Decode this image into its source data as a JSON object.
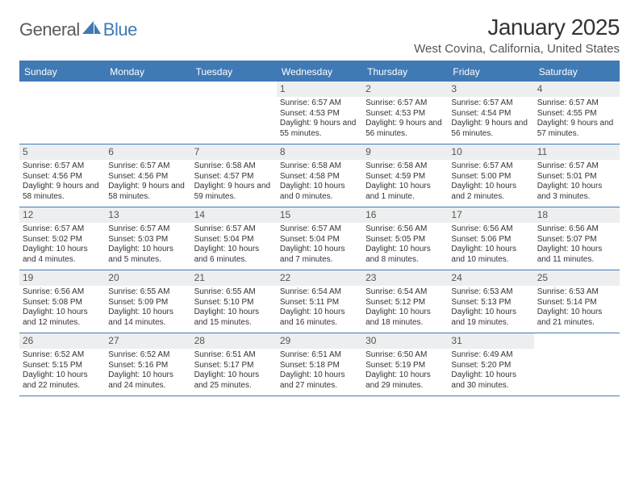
{
  "brand": {
    "part1": "General",
    "part2": "Blue"
  },
  "title": "January 2025",
  "location": "West Covina, California, United States",
  "day_headers": [
    "Sunday",
    "Monday",
    "Tuesday",
    "Wednesday",
    "Thursday",
    "Friday",
    "Saturday"
  ],
  "colors": {
    "accent": "#3f7ab5",
    "header_bg": "#3f7ab5",
    "header_text": "#ffffff",
    "daynum_bg": "#eceeef",
    "body_text": "#333333",
    "page_bg": "#ffffff"
  },
  "typography": {
    "title_fontsize": 28,
    "location_fontsize": 15,
    "dayheader_fontsize": 12,
    "daynum_fontsize": 12,
    "cell_fontsize": 10
  },
  "layout": {
    "cols": 7,
    "rows": 5,
    "first_weekday_index": 3
  },
  "days": [
    {
      "n": 1,
      "sunrise": "6:57 AM",
      "sunset": "4:53 PM",
      "daylight": "9 hours and 55 minutes."
    },
    {
      "n": 2,
      "sunrise": "6:57 AM",
      "sunset": "4:53 PM",
      "daylight": "9 hours and 56 minutes."
    },
    {
      "n": 3,
      "sunrise": "6:57 AM",
      "sunset": "4:54 PM",
      "daylight": "9 hours and 56 minutes."
    },
    {
      "n": 4,
      "sunrise": "6:57 AM",
      "sunset": "4:55 PM",
      "daylight": "9 hours and 57 minutes."
    },
    {
      "n": 5,
      "sunrise": "6:57 AM",
      "sunset": "4:56 PM",
      "daylight": "9 hours and 58 minutes."
    },
    {
      "n": 6,
      "sunrise": "6:57 AM",
      "sunset": "4:56 PM",
      "daylight": "9 hours and 58 minutes."
    },
    {
      "n": 7,
      "sunrise": "6:58 AM",
      "sunset": "4:57 PM",
      "daylight": "9 hours and 59 minutes."
    },
    {
      "n": 8,
      "sunrise": "6:58 AM",
      "sunset": "4:58 PM",
      "daylight": "10 hours and 0 minutes."
    },
    {
      "n": 9,
      "sunrise": "6:58 AM",
      "sunset": "4:59 PM",
      "daylight": "10 hours and 1 minute."
    },
    {
      "n": 10,
      "sunrise": "6:57 AM",
      "sunset": "5:00 PM",
      "daylight": "10 hours and 2 minutes."
    },
    {
      "n": 11,
      "sunrise": "6:57 AM",
      "sunset": "5:01 PM",
      "daylight": "10 hours and 3 minutes."
    },
    {
      "n": 12,
      "sunrise": "6:57 AM",
      "sunset": "5:02 PM",
      "daylight": "10 hours and 4 minutes."
    },
    {
      "n": 13,
      "sunrise": "6:57 AM",
      "sunset": "5:03 PM",
      "daylight": "10 hours and 5 minutes."
    },
    {
      "n": 14,
      "sunrise": "6:57 AM",
      "sunset": "5:04 PM",
      "daylight": "10 hours and 6 minutes."
    },
    {
      "n": 15,
      "sunrise": "6:57 AM",
      "sunset": "5:04 PM",
      "daylight": "10 hours and 7 minutes."
    },
    {
      "n": 16,
      "sunrise": "6:56 AM",
      "sunset": "5:05 PM",
      "daylight": "10 hours and 8 minutes."
    },
    {
      "n": 17,
      "sunrise": "6:56 AM",
      "sunset": "5:06 PM",
      "daylight": "10 hours and 10 minutes."
    },
    {
      "n": 18,
      "sunrise": "6:56 AM",
      "sunset": "5:07 PM",
      "daylight": "10 hours and 11 minutes."
    },
    {
      "n": 19,
      "sunrise": "6:56 AM",
      "sunset": "5:08 PM",
      "daylight": "10 hours and 12 minutes."
    },
    {
      "n": 20,
      "sunrise": "6:55 AM",
      "sunset": "5:09 PM",
      "daylight": "10 hours and 14 minutes."
    },
    {
      "n": 21,
      "sunrise": "6:55 AM",
      "sunset": "5:10 PM",
      "daylight": "10 hours and 15 minutes."
    },
    {
      "n": 22,
      "sunrise": "6:54 AM",
      "sunset": "5:11 PM",
      "daylight": "10 hours and 16 minutes."
    },
    {
      "n": 23,
      "sunrise": "6:54 AM",
      "sunset": "5:12 PM",
      "daylight": "10 hours and 18 minutes."
    },
    {
      "n": 24,
      "sunrise": "6:53 AM",
      "sunset": "5:13 PM",
      "daylight": "10 hours and 19 minutes."
    },
    {
      "n": 25,
      "sunrise": "6:53 AM",
      "sunset": "5:14 PM",
      "daylight": "10 hours and 21 minutes."
    },
    {
      "n": 26,
      "sunrise": "6:52 AM",
      "sunset": "5:15 PM",
      "daylight": "10 hours and 22 minutes."
    },
    {
      "n": 27,
      "sunrise": "6:52 AM",
      "sunset": "5:16 PM",
      "daylight": "10 hours and 24 minutes."
    },
    {
      "n": 28,
      "sunrise": "6:51 AM",
      "sunset": "5:17 PM",
      "daylight": "10 hours and 25 minutes."
    },
    {
      "n": 29,
      "sunrise": "6:51 AM",
      "sunset": "5:18 PM",
      "daylight": "10 hours and 27 minutes."
    },
    {
      "n": 30,
      "sunrise": "6:50 AM",
      "sunset": "5:19 PM",
      "daylight": "10 hours and 29 minutes."
    },
    {
      "n": 31,
      "sunrise": "6:49 AM",
      "sunset": "5:20 PM",
      "daylight": "10 hours and 30 minutes."
    }
  ],
  "labels": {
    "sunrise_prefix": "Sunrise: ",
    "sunset_prefix": "Sunset: ",
    "daylight_prefix": "Daylight: "
  }
}
